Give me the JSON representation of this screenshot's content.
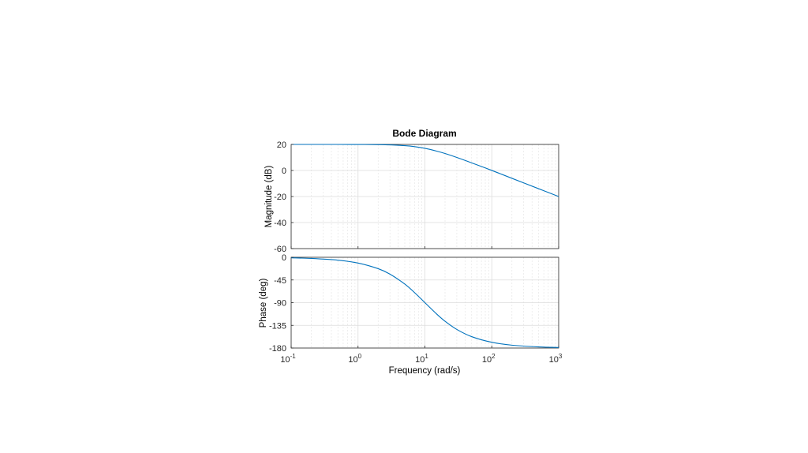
{
  "chart_data": {
    "type": "line",
    "title": "Bode Diagram",
    "xlabel": "Frequency  (rad/s)",
    "xscale": "log",
    "xlim": [
      0.1,
      1000
    ],
    "x_ticks": [
      {
        "base": "10",
        "exp": "-1"
      },
      {
        "base": "10",
        "exp": "0"
      },
      {
        "base": "10",
        "exp": "1"
      },
      {
        "base": "10",
        "exp": "2"
      },
      {
        "base": "10",
        "exp": "3"
      }
    ],
    "color": "#0072bd",
    "grid": true,
    "magnitude": {
      "ylabel": "Magnitude (dB)",
      "ylim": [
        -60,
        20
      ],
      "yticks": [
        20,
        0,
        -20,
        -40,
        -60
      ],
      "x": [
        0.1,
        0.2,
        0.5,
        1,
        2,
        3,
        5,
        7,
        10,
        15,
        20,
        30,
        50,
        100,
        200,
        500,
        1000
      ],
      "y": [
        20,
        20,
        20,
        19.96,
        19.83,
        19.63,
        19.03,
        18.3,
        16.99,
        14.84,
        13.01,
        10.0,
        5.86,
        0.04,
        -6.02,
        -13.98,
        -20.0
      ]
    },
    "phase": {
      "ylabel": "Phase (deg)",
      "ylim": [
        -180,
        0
      ],
      "yticks": [
        0,
        -45,
        -90,
        -135,
        -180
      ],
      "x": [
        0.1,
        0.2,
        0.5,
        1,
        2,
        3,
        5,
        7,
        10,
        15,
        20,
        30,
        50,
        100,
        200,
        500,
        1000
      ],
      "y": [
        -1.15,
        -2.29,
        -5.72,
        -11.42,
        -22.62,
        -33.4,
        -53.13,
        -70.05,
        -90.0,
        -112.6,
        -126.9,
        -143.1,
        -157.4,
        -168.6,
        -174.3,
        -177.7,
        -178.9
      ]
    }
  }
}
